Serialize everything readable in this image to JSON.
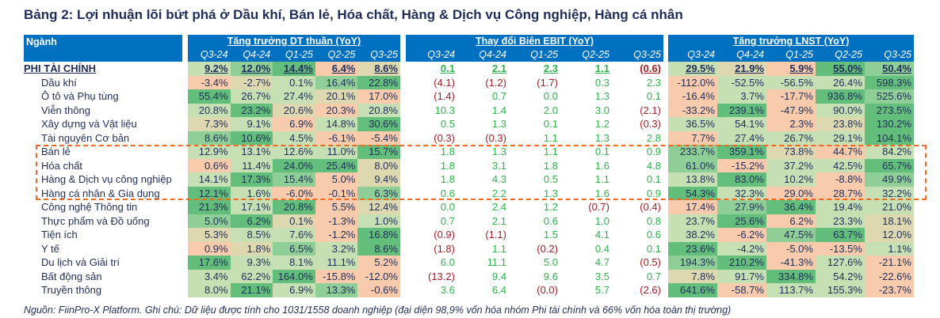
{
  "title": "Bảng 2: Lợi nhuận lõi bứt phá ở Dầu khí, Bán lẻ, Hóa chất, Hàng & Dịch vụ Công nghiệp, Hàng cá nhân",
  "header": {
    "name": "Ngành",
    "dt": "Tăng trưởng DT thuần (YoY)",
    "ebit": "Thay đổi Biên EBIT (YoY)",
    "lnst": "Tăng trưởng LNST (YoY)",
    "quarters": [
      "Q3-24",
      "Q4-24",
      "Q1-25",
      "Q2-25",
      "Q3-25"
    ]
  },
  "colors": {
    "g3": "#63be7b",
    "g2": "#8fcf97",
    "g1": "#c6e0b4",
    "y": "#ddd8b0",
    "o": "#f8cbad",
    "header": "#0070c0",
    "highlight": "#f26a21"
  },
  "rows": [
    {
      "name": "PHI TÀI CHÍNH",
      "total": true,
      "dt": [
        "9.2%",
        "12.0%",
        "14.4%",
        "6.4%",
        "8.6%"
      ],
      "dt_heat": [
        "g1",
        "g2",
        "g3",
        "o",
        "y"
      ],
      "ebit": [
        "0.1",
        "2.1",
        "2.3",
        "1.1",
        "(0.6)"
      ],
      "lnst": [
        "29.5%",
        "21.9%",
        "5.9%",
        "55.0%",
        "50.4%"
      ],
      "lnst_heat": [
        "g1",
        "y",
        "o",
        "g3",
        "g2"
      ]
    },
    {
      "name": "Dầu khí",
      "dt": [
        "-3.4%",
        "-2.7%",
        "0.1%",
        "16.4%",
        "22.8%"
      ],
      "dt_heat": [
        "o",
        "y",
        "g1",
        "g2",
        "g3"
      ],
      "ebit": [
        "(4.1)",
        "(1.2)",
        "(1.7)",
        "0.3",
        "2.3"
      ],
      "lnst": [
        "-112.0%",
        "-52.5%",
        "-56.5%",
        "26.4%",
        "598.3%"
      ],
      "lnst_heat": [
        "o",
        "g1",
        "g1",
        "g1",
        "g3"
      ]
    },
    {
      "name": "Ô tô và Phụ tùng",
      "dt": [
        "55.4%",
        "26.7%",
        "27.4%",
        "20.1%",
        "17.0%"
      ],
      "dt_heat": [
        "g3",
        "g1",
        "g1",
        "y",
        "o"
      ],
      "ebit": [
        "(1.4)",
        "0.7",
        "0.0",
        "1.3",
        "0.1"
      ],
      "lnst": [
        "-16.4%",
        "3.7%",
        "-17.7%",
        "936.8%",
        "525.6%"
      ],
      "lnst_heat": [
        "o",
        "g1",
        "o",
        "g3",
        "g2"
      ]
    },
    {
      "name": "Viễn thông",
      "dt": [
        "20.8%",
        "23.2%",
        "20.6%",
        "20.3%",
        "20.8%"
      ],
      "dt_heat": [
        "g1",
        "g3",
        "y",
        "o",
        "g1"
      ],
      "ebit": [
        "10.3",
        "1.4",
        "2.0",
        "3.0",
        "(2.1)"
      ],
      "lnst": [
        "-33.2%",
        "239.1%",
        "-47.9%",
        "90.0%",
        "273.5%"
      ],
      "lnst_heat": [
        "o",
        "g3",
        "o",
        "g1",
        "g3"
      ]
    },
    {
      "name": "Xây dựng và Vật liệu",
      "dt": [
        "7.3%",
        "9.1%",
        "6.9%",
        "14.8%",
        "30.6%"
      ],
      "dt_heat": [
        "y",
        "g1",
        "o",
        "g1",
        "g3"
      ],
      "ebit": [
        "0.5",
        "1.3",
        "0.1",
        "1.2",
        "(0.3)"
      ],
      "lnst": [
        "36.5%",
        "54.1%",
        "2.3%",
        "23.8%",
        "130.2%"
      ],
      "lnst_heat": [
        "g1",
        "g1",
        "o",
        "y",
        "g3"
      ]
    },
    {
      "name": "Tài nguyên Cơ bản",
      "dt": [
        "8.6%",
        "10.6%",
        "4.5%",
        "-6.1%",
        "-5.4%"
      ],
      "dt_heat": [
        "g2",
        "g3",
        "g1",
        "o",
        "o"
      ],
      "ebit": [
        "(0.3)",
        "(0.3)",
        "1.1",
        "1.3",
        "2.8"
      ],
      "lnst": [
        "7.7%",
        "27.4%",
        "26.7%",
        "29.1%",
        "104.1%"
      ],
      "lnst_heat": [
        "o",
        "g1",
        "g1",
        "g1",
        "g3"
      ]
    },
    {
      "name": "Bán lẻ",
      "dt": [
        "12.9%",
        "13.1%",
        "12.6%",
        "11.0%",
        "15.7%"
      ],
      "dt_heat": [
        "g1",
        "g1",
        "g1",
        "g1",
        "g3"
      ],
      "ebit": [
        "1.8",
        "1.3",
        "1.1",
        "0.1",
        "0.9"
      ],
      "lnst": [
        "233.7%",
        "359.1%",
        "73.8%",
        "44.7%",
        "84.2%"
      ],
      "lnst_heat": [
        "g2",
        "g3",
        "y",
        "o",
        "g1"
      ]
    },
    {
      "name": "Hóa chất",
      "dt": [
        "0.6%",
        "11.4%",
        "24.0%",
        "25.4%",
        "8.0%"
      ],
      "dt_heat": [
        "o",
        "g1",
        "g3",
        "g3",
        "y"
      ],
      "ebit": [
        "1.8",
        "3.1",
        "1.8",
        "1.6",
        "4.8"
      ],
      "lnst": [
        "61.0%",
        "-15.2%",
        "37.2%",
        "42.5%",
        "65.7%"
      ],
      "lnst_heat": [
        "g2",
        "o",
        "g1",
        "g1",
        "g3"
      ]
    },
    {
      "name": "Hàng & Dịch vụ công nghiệp",
      "dt": [
        "14.1%",
        "17.3%",
        "15.4%",
        "5.0%",
        "9.4%"
      ],
      "dt_heat": [
        "g1",
        "g3",
        "g2",
        "o",
        "y"
      ],
      "ebit": [
        "1.8",
        "4.3",
        "0.5",
        "1.1",
        "0.1"
      ],
      "lnst": [
        "13.8%",
        "83.0%",
        "10.2%",
        "-8.8%",
        "49.9%"
      ],
      "lnst_heat": [
        "g1",
        "g3",
        "g1",
        "o",
        "g2"
      ]
    },
    {
      "name": "Hàng cá nhân & Gia dụng",
      "dt": [
        "12.1%",
        "1.6%",
        "-6.0%",
        "-0.1%",
        "6.3%"
      ],
      "dt_heat": [
        "g3",
        "g1",
        "o",
        "o",
        "g2"
      ],
      "ebit": [
        "0.6",
        "2.2",
        "1.3",
        "1.6",
        "0.9"
      ],
      "lnst": [
        "54.3%",
        "32.3%",
        "29.0%",
        "28.7%",
        "32.2%"
      ],
      "lnst_heat": [
        "g3",
        "g1",
        "o",
        "o",
        "g1"
      ]
    },
    {
      "name": "Công nghệ Thông tin",
      "dt": [
        "21.3%",
        "17.1%",
        "20.8%",
        "5.5%",
        "12.4%"
      ],
      "dt_heat": [
        "g3",
        "g1",
        "g3",
        "o",
        "y"
      ],
      "ebit": [
        "0.0",
        "2.4",
        "1.2",
        "(0.7)",
        "(0.4)"
      ],
      "lnst": [
        "17.4%",
        "27.9%",
        "36.4%",
        "19.4%",
        "21.0%"
      ],
      "lnst_heat": [
        "o",
        "g2",
        "g3",
        "g1",
        "g1"
      ]
    },
    {
      "name": "Thực phẩm và Đồ uống",
      "dt": [
        "5.0%",
        "6.2%",
        "0.1%",
        "-1.3%",
        "1.0%"
      ],
      "dt_heat": [
        "g2",
        "g3",
        "y",
        "o",
        "g1"
      ],
      "ebit": [
        "0.7",
        "2.1",
        "0.6",
        "1.0",
        "0.8"
      ],
      "lnst": [
        "23.7%",
        "25.6%",
        "6.2%",
        "23.3%",
        "18.1%"
      ],
      "lnst_heat": [
        "g1",
        "g3",
        "o",
        "g1",
        "y"
      ]
    },
    {
      "name": "Tiện ích",
      "dt": [
        "5.3%",
        "8.5%",
        "7.6%",
        "-1.2%",
        "16.8%"
      ],
      "dt_heat": [
        "y",
        "g1",
        "g1",
        "o",
        "g3"
      ],
      "ebit": [
        "(0.9)",
        "(1.1)",
        "1.5",
        "4.1",
        "0.6"
      ],
      "lnst": [
        "38.2%",
        "-6.2%",
        "47.5%",
        "63.7%",
        "12.0%"
      ],
      "lnst_heat": [
        "g1",
        "o",
        "g2",
        "g3",
        "y"
      ]
    },
    {
      "name": "Y tế",
      "dt": [
        "0.9%",
        "1.8%",
        "6.5%",
        "3.2%",
        "8.6%"
      ],
      "dt_heat": [
        "o",
        "y",
        "g2",
        "g1",
        "g3"
      ],
      "ebit": [
        "(1.8)",
        "1.1",
        "(0.2)",
        "0.4",
        "0.1"
      ],
      "lnst": [
        "23.6%",
        "-4.2%",
        "-5.0%",
        "-13.5%",
        "1.1%"
      ],
      "lnst_heat": [
        "g3",
        "g1",
        "o",
        "o",
        "g1"
      ]
    },
    {
      "name": "Du lịch và Giải trí",
      "dt": [
        "17.6%",
        "9.3%",
        "8.1%",
        "11.1%",
        "5.2%"
      ],
      "dt_heat": [
        "g3",
        "g1",
        "g1",
        "g1",
        "o"
      ],
      "ebit": [
        "6.0",
        "11.1",
        "5.0",
        "4.7",
        "(0.5)"
      ],
      "lnst": [
        "194.3%",
        "210.2%",
        "-41.3%",
        "127.6%",
        "-21.1%"
      ],
      "lnst_heat": [
        "g2",
        "g3",
        "o",
        "g1",
        "o"
      ]
    },
    {
      "name": "Bất động sản",
      "dt": [
        "3.4%",
        "62.2%",
        "164.0%",
        "-15.8%",
        "-12.0%"
      ],
      "dt_heat": [
        "g1",
        "g1",
        "g3",
        "o",
        "o"
      ],
      "ebit": [
        "(13.2)",
        "9.4",
        "9.6",
        "3.5",
        "0.7"
      ],
      "lnst": [
        "7.8%",
        "91.7%",
        "334.8%",
        "54.2%",
        "-22.6%"
      ],
      "lnst_heat": [
        "y",
        "g1",
        "g3",
        "g1",
        "o"
      ]
    },
    {
      "name": "Truyền thông",
      "dt": [
        "8.0%",
        "21.1%",
        "6.9%",
        "13.3%",
        "-0.6%"
      ],
      "dt_heat": [
        "g1",
        "g3",
        "g1",
        "g2",
        "o"
      ],
      "ebit": [
        "3.6",
        "6.4",
        "(0.0)",
        "5.7",
        "(2.6)"
      ],
      "lnst": [
        "641.6%",
        "-58.7%",
        "113.7%",
        "155.3%",
        "-23.7%"
      ],
      "lnst_heat": [
        "g3",
        "o",
        "g1",
        "g1",
        "o"
      ]
    }
  ],
  "footer": "Nguồn: FiinPro-X Platform. Ghi chú: Dữ liệu được tính cho 1031/1558 doanh nghiệp (đại diện 98,9% vốn hóa nhóm Phi tài chính và 66% vốn hóa toàn thị trường)"
}
